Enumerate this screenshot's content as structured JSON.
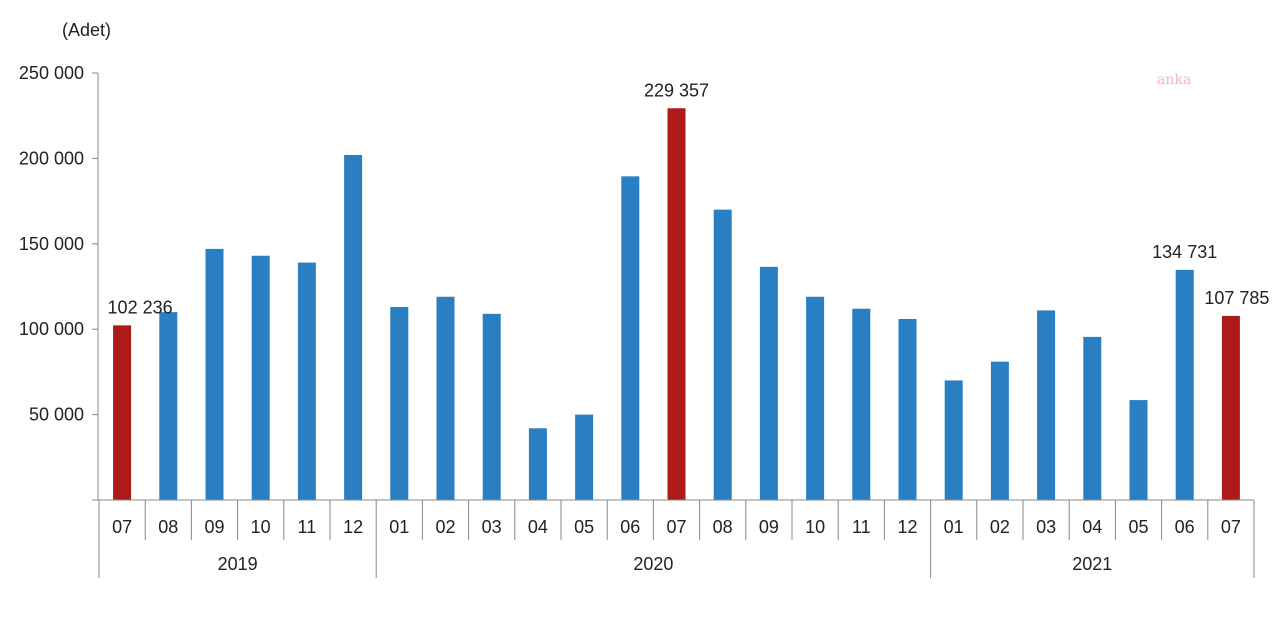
{
  "chart": {
    "unit_label": "(Adet)",
    "watermark": "anka",
    "colors": {
      "normal": "#2a7fc2",
      "highlight": "#ad1a1a",
      "axis": "#888888",
      "text": "#222222"
    }
  },
  "chart_data": {
    "type": "bar",
    "title": "",
    "xlabel": "",
    "ylabel": "(Adet)",
    "ylim": [
      0,
      250000
    ],
    "yticks": [
      0,
      50000,
      100000,
      150000,
      200000,
      250000
    ],
    "ytick_labels": [
      "",
      "50 000",
      "100 000",
      "150 000",
      "200 000",
      "250 000"
    ],
    "grid": false,
    "legend": null,
    "groups": [
      {
        "label": "2019",
        "months": [
          "07",
          "08",
          "09",
          "10",
          "11",
          "12"
        ]
      },
      {
        "label": "2020",
        "months": [
          "01",
          "02",
          "03",
          "04",
          "05",
          "06",
          "07",
          "08",
          "09",
          "10",
          "11",
          "12"
        ]
      },
      {
        "label": "2021",
        "months": [
          "01",
          "02",
          "03",
          "04",
          "05",
          "06",
          "07"
        ]
      }
    ],
    "categories": [
      "2019-07",
      "2019-08",
      "2019-09",
      "2019-10",
      "2019-11",
      "2019-12",
      "2020-01",
      "2020-02",
      "2020-03",
      "2020-04",
      "2020-05",
      "2020-06",
      "2020-07",
      "2020-08",
      "2020-09",
      "2020-10",
      "2020-11",
      "2020-12",
      "2021-01",
      "2021-02",
      "2021-03",
      "2021-04",
      "2021-05",
      "2021-06",
      "2021-07"
    ],
    "values": [
      102236,
      110000,
      147000,
      143000,
      139000,
      202000,
      113000,
      119000,
      109000,
      42000,
      50000,
      189500,
      229357,
      170000,
      136500,
      119000,
      112000,
      106000,
      70000,
      81000,
      111000,
      95500,
      58500,
      134731,
      107785
    ],
    "highlighted": [
      0,
      12,
      24
    ],
    "data_labels": [
      {
        "index": 0,
        "text": "102 236"
      },
      {
        "index": 12,
        "text": "229 357"
      },
      {
        "index": 23,
        "text": "134 731"
      },
      {
        "index": 24,
        "text": "107 785"
      }
    ]
  }
}
